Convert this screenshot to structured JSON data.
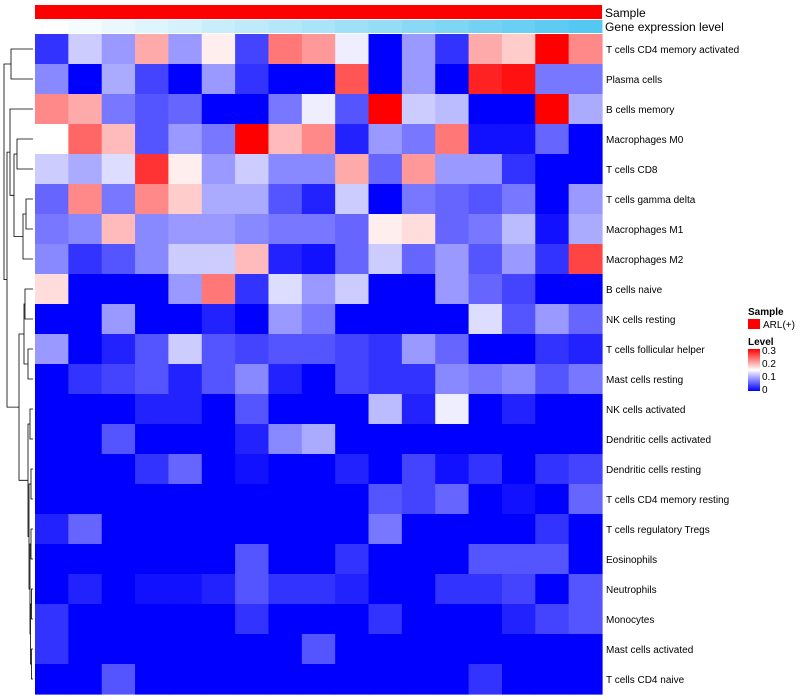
{
  "chart_data": {
    "type": "heatmap",
    "title": "",
    "annotation_tracks": [
      {
        "name": "Sample",
        "legend_title": "Sample",
        "legend_label": "ARL(+)",
        "color": "#ff0000"
      },
      {
        "name": "Gene expression level",
        "colors_from": "#ffffff",
        "colors_to": "#53c8f2"
      }
    ],
    "color_legend": {
      "title": "Level",
      "ticks": [
        "0.3",
        "0.2",
        "0.1",
        "0"
      ],
      "range": [
        0,
        0.3
      ],
      "low_color": "#0000ff",
      "mid_color": "#ffffff",
      "high_color": "#ff0000"
    },
    "row_labels": [
      "T cells CD4 memory activated",
      "Plasma cells",
      "B cells memory",
      "Macrophages M0",
      "T cells CD8",
      "T cells gamma delta",
      "Macrophages M1",
      "Macrophages M2",
      "B cells naive",
      "NK cells resting",
      "T cells follicular helper",
      "Mast cells resting",
      "NK cells activated",
      "Dendritic cells activated",
      "Dendritic cells resting",
      "T cells CD4 memory resting",
      "T cells regulatory  Tregs",
      "Eosinophils",
      "Neutrophils",
      "Monocytes",
      "Mast cells activated",
      "T cells CD4 naive"
    ],
    "n_columns": 17,
    "values": [
      [
        0.03,
        0.12,
        0.09,
        0.2,
        0.09,
        0.16,
        0.04,
        0.23,
        0.21,
        0.14,
        0.0,
        0.09,
        0.03,
        0.2,
        0.18,
        0.3,
        0.22
      ],
      [
        0.08,
        0.0,
        0.1,
        0.04,
        0.0,
        0.09,
        0.03,
        0.0,
        0.0,
        0.25,
        0.0,
        0.09,
        0.0,
        0.28,
        0.29,
        0.07,
        0.07
      ],
      [
        0.22,
        0.2,
        0.07,
        0.05,
        0.06,
        0.0,
        0.0,
        0.07,
        0.14,
        0.05,
        0.3,
        0.12,
        0.11,
        0.0,
        0.0,
        0.3,
        0.1
      ],
      [
        0.15,
        0.24,
        0.19,
        0.05,
        0.09,
        0.07,
        0.3,
        0.19,
        0.22,
        0.02,
        0.09,
        0.07,
        0.23,
        0.01,
        0.01,
        0.06,
        0.0
      ],
      [
        0.12,
        0.1,
        0.13,
        0.27,
        0.16,
        0.09,
        0.12,
        0.08,
        0.08,
        0.2,
        0.06,
        0.21,
        0.09,
        0.09,
        0.03,
        0.0,
        0.0
      ],
      [
        0.06,
        0.22,
        0.07,
        0.22,
        0.18,
        0.1,
        0.1,
        0.05,
        0.02,
        0.12,
        0.0,
        0.07,
        0.06,
        0.05,
        0.07,
        0.0,
        0.09
      ],
      [
        0.07,
        0.08,
        0.19,
        0.08,
        0.09,
        0.09,
        0.08,
        0.07,
        0.07,
        0.06,
        0.16,
        0.17,
        0.06,
        0.07,
        0.11,
        0.01,
        0.1
      ],
      [
        0.08,
        0.03,
        0.05,
        0.08,
        0.12,
        0.12,
        0.19,
        0.02,
        0.01,
        0.06,
        0.12,
        0.06,
        0.09,
        0.05,
        0.09,
        0.03,
        0.26
      ],
      [
        0.17,
        0.0,
        0.0,
        0.0,
        0.09,
        0.23,
        0.03,
        0.13,
        0.09,
        0.12,
        0.0,
        0.0,
        0.09,
        0.06,
        0.04,
        0.0,
        0.0
      ],
      [
        0.0,
        0.0,
        0.09,
        0.0,
        0.0,
        0.02,
        0.0,
        0.09,
        0.07,
        0.0,
        0.0,
        0.0,
        0.0,
        0.13,
        0.05,
        0.09,
        0.06
      ],
      [
        0.09,
        0.0,
        0.02,
        0.05,
        0.12,
        0.05,
        0.04,
        0.05,
        0.05,
        0.04,
        0.03,
        0.09,
        0.06,
        0.0,
        0.0,
        0.03,
        0.02
      ],
      [
        0.0,
        0.03,
        0.04,
        0.05,
        0.02,
        0.05,
        0.08,
        0.02,
        0.0,
        0.04,
        0.03,
        0.03,
        0.08,
        0.07,
        0.08,
        0.05,
        0.07
      ],
      [
        0.0,
        0.0,
        0.0,
        0.02,
        0.02,
        0.0,
        0.05,
        0.0,
        0.0,
        0.0,
        0.11,
        0.02,
        0.14,
        0.0,
        0.02,
        0.0,
        0.0
      ],
      [
        0.0,
        0.0,
        0.05,
        0.0,
        0.0,
        0.0,
        0.02,
        0.08,
        0.1,
        0.0,
        0.0,
        0.0,
        0.0,
        0.0,
        0.0,
        0.0,
        0.0
      ],
      [
        0.0,
        0.0,
        0.0,
        0.03,
        0.06,
        0.0,
        0.01,
        0.0,
        0.0,
        0.02,
        0.0,
        0.04,
        0.01,
        0.03,
        0.0,
        0.03,
        0.04
      ],
      [
        0.0,
        0.0,
        0.0,
        0.0,
        0.0,
        0.0,
        0.0,
        0.0,
        0.0,
        0.0,
        0.05,
        0.04,
        0.06,
        0.0,
        0.01,
        0.0,
        0.06
      ],
      [
        0.02,
        0.06,
        0.0,
        0.0,
        0.0,
        0.0,
        0.0,
        0.0,
        0.0,
        0.0,
        0.07,
        0.0,
        0.0,
        0.0,
        0.0,
        0.03,
        0.0
      ],
      [
        0.0,
        0.0,
        0.0,
        0.0,
        0.0,
        0.0,
        0.05,
        0.0,
        0.0,
        0.03,
        0.0,
        0.0,
        0.0,
        0.05,
        0.05,
        0.05,
        0.0
      ],
      [
        0.0,
        0.02,
        0.0,
        0.01,
        0.01,
        0.02,
        0.05,
        0.03,
        0.03,
        0.02,
        0.0,
        0.0,
        0.03,
        0.03,
        0.04,
        0.0,
        0.05
      ],
      [
        0.03,
        0.0,
        0.0,
        0.0,
        0.0,
        0.0,
        0.03,
        0.0,
        0.0,
        0.0,
        0.03,
        0.0,
        0.0,
        0.0,
        0.02,
        0.04,
        0.05
      ],
      [
        0.03,
        0.0,
        0.0,
        0.0,
        0.0,
        0.0,
        0.0,
        0.0,
        0.05,
        0.0,
        0.0,
        0.0,
        0.0,
        0.0,
        0.0,
        0.0,
        0.0
      ],
      [
        0.0,
        0.0,
        0.05,
        0.0,
        0.0,
        0.0,
        0.0,
        0.0,
        0.0,
        0.0,
        0.0,
        0.0,
        0.0,
        0.03,
        0.0,
        0.0,
        0.0
      ]
    ],
    "dendrogram": "row clustering tree on the left"
  }
}
